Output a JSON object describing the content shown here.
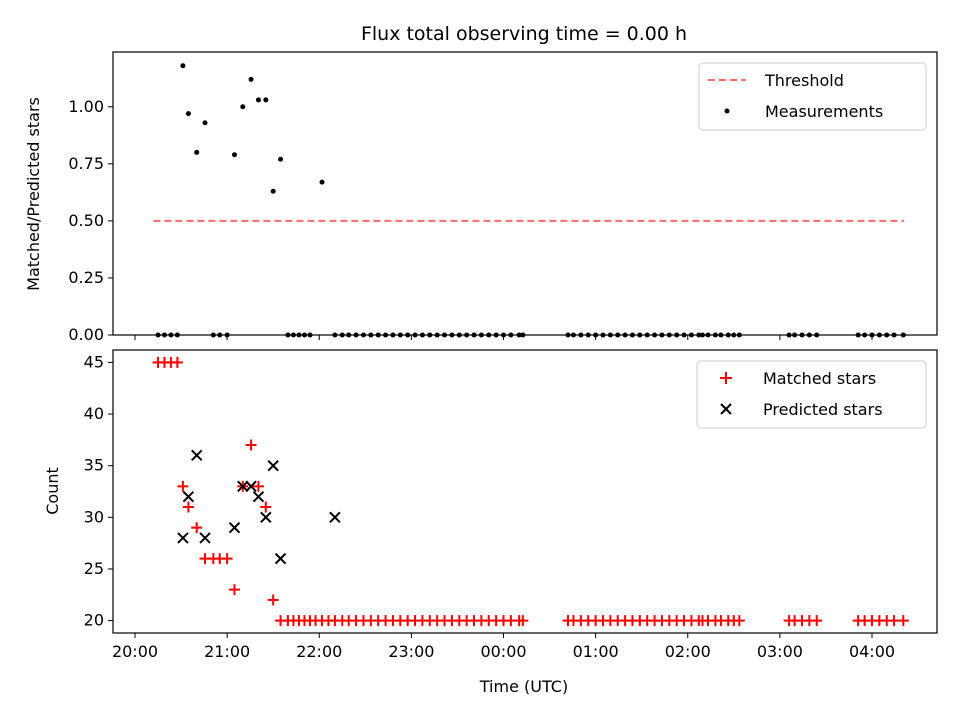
{
  "chart_data": [
    {
      "type": "scatter",
      "title": "Flux total observing time = 0.00 h",
      "ylabel": "Matched/Predicted stars",
      "ylim": [
        0,
        1.24
      ],
      "yticks": [
        0.0,
        0.25,
        0.5,
        0.75,
        1.0
      ],
      "ytick_labels": [
        "0.00",
        "0.25",
        "0.50",
        "0.75",
        "1.00"
      ],
      "legend_position": "top-right",
      "threshold": {
        "name": "Threshold",
        "value": 0.5,
        "x_start": 0.2,
        "x_end": 8.35,
        "color": "#ff6b6b"
      },
      "series": [
        {
          "name": "Measurements",
          "color": "#000000",
          "marker": "dot",
          "x": [
            0.25,
            0.32,
            0.39,
            0.46,
            0.52,
            0.58,
            0.67,
            0.76,
            0.85,
            0.92,
            1.0,
            1.08,
            1.17,
            1.26,
            1.34,
            1.42,
            1.5,
            1.58,
            1.66,
            1.72,
            1.78,
            1.84,
            1.9,
            2.03,
            2.17,
            2.25,
            2.32,
            2.4,
            2.48,
            2.56,
            2.64,
            2.72,
            2.8,
            2.88,
            2.96,
            3.04,
            3.12,
            3.2,
            3.28,
            3.36,
            3.44,
            3.52,
            3.6,
            3.68,
            3.76,
            3.84,
            3.92,
            4.0,
            4.08,
            4.17,
            4.21,
            4.7,
            4.76,
            4.84,
            4.92,
            5.0,
            5.08,
            5.16,
            5.24,
            5.32,
            5.4,
            5.48,
            5.56,
            5.64,
            5.72,
            5.8,
            5.88,
            5.96,
            6.04,
            6.12,
            6.16,
            6.22,
            6.3,
            6.36,
            6.44,
            6.5,
            6.56,
            7.1,
            7.16,
            7.24,
            7.32,
            7.4,
            7.85,
            7.92,
            8.0,
            8.08,
            8.16,
            8.24,
            8.34
          ],
          "y": [
            0,
            0,
            0,
            0,
            1.18,
            0.97,
            0.8,
            0.93,
            0,
            0,
            0,
            0.79,
            1.0,
            1.12,
            1.03,
            1.03,
            0.63,
            0.77,
            0,
            0,
            0,
            0,
            0,
            0.67,
            0,
            0,
            0,
            0,
            0,
            0,
            0,
            0,
            0,
            0,
            0,
            0,
            0,
            0,
            0,
            0,
            0,
            0,
            0,
            0,
            0,
            0,
            0,
            0,
            0,
            0,
            0,
            0,
            0,
            0,
            0,
            0,
            0,
            0,
            0,
            0,
            0,
            0,
            0,
            0,
            0,
            0,
            0,
            0,
            0,
            0,
            0,
            0,
            0,
            0,
            0,
            0,
            0,
            0,
            0,
            0,
            0,
            0,
            0,
            0,
            0,
            0,
            0,
            0,
            0
          ]
        }
      ]
    },
    {
      "type": "scatter",
      "xlabel": "Time (UTC)",
      "ylabel": "Count",
      "ylim": [
        18.8,
        46.2
      ],
      "yticks": [
        20,
        25,
        30,
        35,
        40,
        45
      ],
      "ytick_labels": [
        "20",
        "25",
        "30",
        "35",
        "40",
        "45"
      ],
      "x_tick_labels": [
        "20:00",
        "21:00",
        "22:00",
        "23:00",
        "00:00",
        "01:00",
        "02:00",
        "03:00",
        "04:00"
      ],
      "legend_position": "top-right",
      "series": [
        {
          "name": "Matched stars",
          "color": "#ff0000",
          "marker": "plus",
          "x": [
            0.25,
            0.32,
            0.39,
            0.46,
            0.52,
            0.58,
            0.67,
            0.76,
            0.85,
            0.92,
            1.0,
            1.08,
            1.17,
            1.26,
            1.34,
            1.42,
            1.5,
            1.58,
            1.66,
            1.72,
            1.78,
            1.84,
            1.9,
            1.96,
            2.03,
            2.1,
            2.17,
            2.25,
            2.32,
            2.4,
            2.48,
            2.56,
            2.64,
            2.72,
            2.8,
            2.88,
            2.96,
            3.04,
            3.12,
            3.2,
            3.28,
            3.36,
            3.44,
            3.52,
            3.6,
            3.68,
            3.76,
            3.84,
            3.92,
            4.0,
            4.08,
            4.17,
            4.21,
            4.7,
            4.76,
            4.84,
            4.92,
            5.0,
            5.08,
            5.16,
            5.24,
            5.32,
            5.4,
            5.48,
            5.56,
            5.64,
            5.72,
            5.8,
            5.88,
            5.96,
            6.04,
            6.12,
            6.16,
            6.22,
            6.3,
            6.36,
            6.44,
            6.5,
            6.56,
            7.1,
            7.16,
            7.24,
            7.32,
            7.4,
            7.85,
            7.92,
            8.0,
            8.08,
            8.16,
            8.24,
            8.34
          ],
          "y": [
            45,
            45,
            45,
            45,
            33,
            31,
            29,
            26,
            26,
            26,
            26,
            23,
            33,
            37,
            33,
            31,
            22,
            20,
            20,
            20,
            20,
            20,
            20,
            20,
            20,
            20,
            20,
            20,
            20,
            20,
            20,
            20,
            20,
            20,
            20,
            20,
            20,
            20,
            20,
            20,
            20,
            20,
            20,
            20,
            20,
            20,
            20,
            20,
            20,
            20,
            20,
            20,
            20,
            20,
            20,
            20,
            20,
            20,
            20,
            20,
            20,
            20,
            20,
            20,
            20,
            20,
            20,
            20,
            20,
            20,
            20,
            20,
            20,
            20,
            20,
            20,
            20,
            20,
            20,
            20,
            20,
            20,
            20,
            20,
            20,
            20,
            20,
            20,
            20,
            20,
            20
          ]
        },
        {
          "name": "Predicted stars",
          "color": "#000000",
          "marker": "x",
          "x": [
            0.52,
            0.58,
            0.67,
            0.76,
            1.08,
            1.17,
            1.26,
            1.34,
            1.42,
            1.5,
            1.58,
            2.17
          ],
          "y": [
            28,
            32,
            36,
            28,
            29,
            33,
            33,
            32,
            30,
            35,
            26,
            30
          ]
        }
      ]
    }
  ]
}
